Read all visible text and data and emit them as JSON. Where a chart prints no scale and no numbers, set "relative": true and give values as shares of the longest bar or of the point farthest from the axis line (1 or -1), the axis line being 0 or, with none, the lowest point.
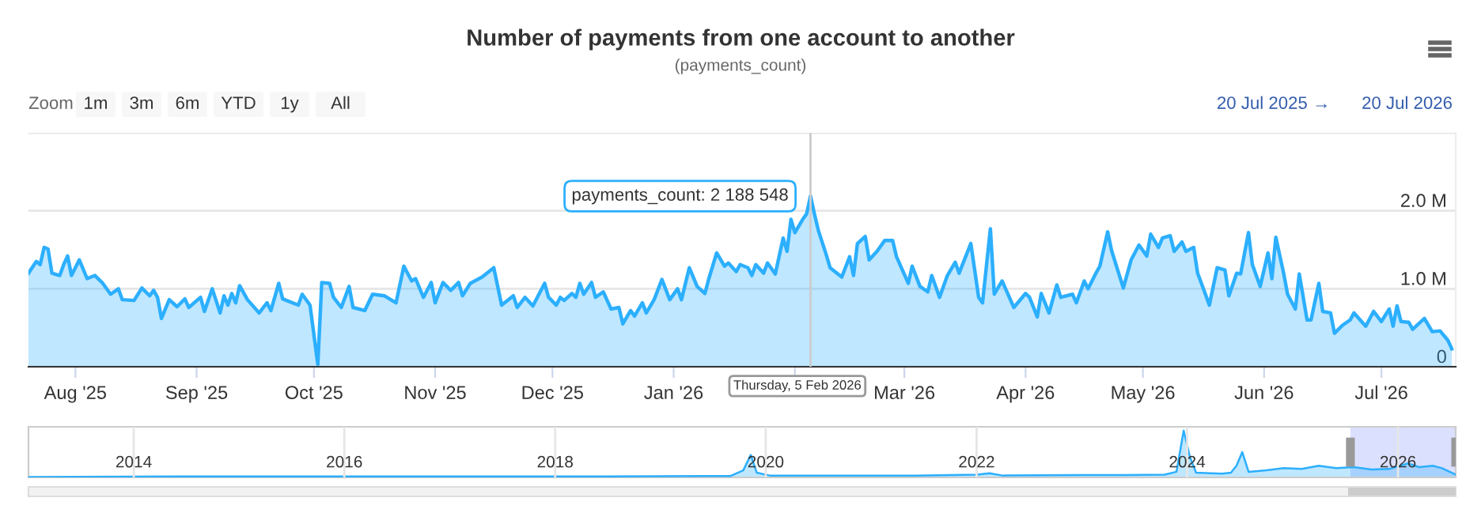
{
  "chart_data": [
    {
      "type": "area",
      "title": "Number of payments from one account to another",
      "subtitle": "(payments_count)",
      "color": "#2caffe",
      "x": [
        "2025-07-20",
        "2025-07-22",
        "2025-07-23",
        "2025-07-24",
        "2025-07-25",
        "2025-07-26",
        "2025-07-28",
        "2025-07-29",
        "2025-07-30",
        "2025-07-31",
        "2025-08-02",
        "2025-08-04",
        "2025-08-06",
        "2025-08-08",
        "2025-08-10",
        "2025-08-12",
        "2025-08-13",
        "2025-08-16",
        "2025-08-18",
        "2025-08-20",
        "2025-08-21",
        "2025-08-22",
        "2025-08-23",
        "2025-08-25",
        "2025-08-27",
        "2025-08-29",
        "2025-08-30",
        "2025-09-02",
        "2025-09-03",
        "2025-09-05",
        "2025-09-07",
        "2025-09-08",
        "2025-09-09",
        "2025-09-10",
        "2025-09-11",
        "2025-09-12",
        "2025-09-14",
        "2025-09-17",
        "2025-09-19",
        "2025-09-20",
        "2025-09-22",
        "2025-09-23",
        "2025-09-27",
        "2025-09-28",
        "2025-09-30",
        "2025-10-02",
        "2025-10-03",
        "2025-10-05",
        "2025-10-06",
        "2025-10-08",
        "2025-10-10",
        "2025-10-11",
        "2025-10-14",
        "2025-10-16",
        "2025-10-19",
        "2025-10-22",
        "2025-10-24",
        "2025-10-26",
        "2025-10-27",
        "2025-10-29",
        "2025-10-31",
        "2025-11-01",
        "2025-11-03",
        "2025-11-05",
        "2025-11-07",
        "2025-11-08",
        "2025-11-10",
        "2025-11-13",
        "2025-11-16",
        "2025-11-18",
        "2025-11-21",
        "2025-11-22",
        "2025-11-24",
        "2025-11-26",
        "2025-11-29",
        "2025-11-30",
        "2025-12-02",
        "2025-12-03",
        "2025-12-04",
        "2025-12-06",
        "2025-12-07",
        "2025-12-08",
        "2025-12-09",
        "2025-12-11",
        "2025-12-12",
        "2025-12-14",
        "2025-12-16",
        "2025-12-18",
        "2025-12-19",
        "2025-12-21",
        "2025-12-22",
        "2025-12-24",
        "2025-12-25",
        "2025-12-27",
        "2025-12-29",
        "2025-12-31",
        "2026-01-02",
        "2026-01-03",
        "2026-01-05",
        "2026-01-07",
        "2026-01-09",
        "2026-01-10",
        "2026-01-12",
        "2026-01-14",
        "2026-01-15",
        "2026-01-17",
        "2026-01-18",
        "2026-01-20",
        "2026-01-21",
        "2026-01-22",
        "2026-01-24",
        "2026-01-25",
        "2026-01-27",
        "2026-01-29",
        "2026-01-30",
        "2026-01-31",
        "2026-02-01",
        "2026-02-03",
        "2026-02-04",
        "2026-02-05",
        "2026-02-06",
        "2026-02-07",
        "2026-02-09",
        "2026-02-10",
        "2026-02-13",
        "2026-02-15",
        "2026-02-16",
        "2026-02-17",
        "2026-02-19",
        "2026-02-20",
        "2026-02-22",
        "2026-02-24",
        "2026-02-26",
        "2026-02-27",
        "2026-03-02",
        "2026-03-03",
        "2026-03-05",
        "2026-03-07",
        "2026-03-08",
        "2026-03-10",
        "2026-03-12",
        "2026-03-14",
        "2026-03-15",
        "2026-03-18",
        "2026-03-20",
        "2026-03-21",
        "2026-03-23",
        "2026-03-24",
        "2026-03-26",
        "2026-03-29",
        "2026-04-01",
        "2026-04-02",
        "2026-04-04",
        "2026-04-05",
        "2026-04-07",
        "2026-04-09",
        "2026-04-10",
        "2026-04-13",
        "2026-04-14",
        "2026-04-16",
        "2026-04-17",
        "2026-04-19",
        "2026-04-20",
        "2026-04-22",
        "2026-04-23",
        "2026-04-25",
        "2026-04-26",
        "2026-04-28",
        "2026-04-30",
        "2026-05-02",
        "2026-05-03",
        "2026-05-05",
        "2026-05-06",
        "2026-05-08",
        "2026-05-09",
        "2026-05-11",
        "2026-05-12",
        "2026-05-14",
        "2026-05-15",
        "2026-05-17",
        "2026-05-18",
        "2026-05-20",
        "2026-05-22",
        "2026-05-23",
        "2026-05-25",
        "2026-05-26",
        "2026-05-28",
        "2026-05-29",
        "2026-05-31",
        "2026-06-02",
        "2026-06-03",
        "2026-06-04",
        "2026-06-06",
        "2026-06-07",
        "2026-06-09",
        "2026-06-10",
        "2026-06-12",
        "2026-06-13",
        "2026-06-15",
        "2026-06-16",
        "2026-06-18",
        "2026-06-19",
        "2026-06-21",
        "2026-06-23",
        "2026-06-24",
        "2026-06-27",
        "2026-06-29",
        "2026-07-01",
        "2026-07-03",
        "2026-07-04",
        "2026-07-05",
        "2026-07-06",
        "2026-07-08",
        "2026-07-09",
        "2026-07-12",
        "2026-07-14",
        "2026-07-16",
        "2026-07-18",
        "2026-07-19"
      ],
      "values": [
        1200000,
        1350000,
        1310000,
        1530000,
        1510000,
        1200000,
        1170000,
        1310000,
        1420000,
        1170000,
        1370000,
        1130000,
        1170000,
        1070000,
        930000,
        1000000,
        860000,
        850000,
        1010000,
        910000,
        980000,
        890000,
        620000,
        860000,
        770000,
        870000,
        760000,
        890000,
        710000,
        1000000,
        690000,
        910000,
        790000,
        940000,
        820000,
        1040000,
        860000,
        690000,
        820000,
        720000,
        1070000,
        870000,
        790000,
        930000,
        790000,
        30000,
        1080000,
        1070000,
        890000,
        760000,
        1030000,
        760000,
        720000,
        930000,
        910000,
        820000,
        1290000,
        1100000,
        1130000,
        890000,
        1080000,
        820000,
        1080000,
        980000,
        1080000,
        910000,
        1070000,
        1150000,
        1270000,
        790000,
        910000,
        760000,
        890000,
        780000,
        1070000,
        890000,
        790000,
        890000,
        850000,
        940000,
        890000,
        1070000,
        930000,
        1080000,
        890000,
        960000,
        740000,
        760000,
        550000,
        720000,
        650000,
        820000,
        690000,
        860000,
        1120000,
        860000,
        1000000,
        860000,
        1270000,
        1030000,
        940000,
        1130000,
        1460000,
        1290000,
        1330000,
        1220000,
        1310000,
        1270000,
        1170000,
        1310000,
        1200000,
        1330000,
        1190000,
        1650000,
        1480000,
        1890000,
        1720000,
        1890000,
        1960000,
        2188548,
        1960000,
        1750000,
        1440000,
        1270000,
        1150000,
        1410000,
        1170000,
        1580000,
        1670000,
        1370000,
        1480000,
        1620000,
        1620000,
        1410000,
        1070000,
        1290000,
        1030000,
        960000,
        1170000,
        890000,
        1170000,
        1340000,
        1200000,
        1580000,
        890000,
        820000,
        1770000,
        930000,
        1100000,
        760000,
        940000,
        890000,
        640000,
        940000,
        690000,
        1050000,
        890000,
        930000,
        820000,
        1100000,
        1000000,
        1200000,
        1290000,
        1730000,
        1490000,
        1170000,
        1010000,
        1370000,
        1560000,
        1420000,
        1700000,
        1530000,
        1650000,
        1680000,
        1480000,
        1600000,
        1480000,
        1530000,
        1200000,
        930000,
        790000,
        1270000,
        1240000,
        910000,
        1200000,
        1190000,
        1720000,
        1310000,
        1030000,
        1460000,
        1130000,
        1660000,
        1200000,
        930000,
        740000,
        1190000,
        600000,
        600000,
        1070000,
        710000,
        690000,
        430000,
        530000,
        600000,
        690000,
        520000,
        710000,
        580000,
        740000,
        520000,
        780000,
        580000,
        570000,
        480000,
        620000,
        450000,
        460000,
        340000,
        230000
      ],
      "xlim": [
        "2025-07-20",
        "2026-07-20"
      ],
      "xticks": [
        {
          "value": "2025-08-01",
          "label": "Aug '25"
        },
        {
          "value": "2025-09-01",
          "label": "Sep '25"
        },
        {
          "value": "2025-10-01",
          "label": "Oct '25"
        },
        {
          "value": "2025-11-01",
          "label": "Nov '25"
        },
        {
          "value": "2025-12-01",
          "label": "Dec '25"
        },
        {
          "value": "2026-01-01",
          "label": "Jan '26"
        },
        {
          "value": "2026-02-01",
          "label": null
        },
        {
          "value": "2026-03-01",
          "label": "Mar '26"
        },
        {
          "value": "2026-04-01",
          "label": "Apr '26"
        },
        {
          "value": "2026-05-01",
          "label": "May '26"
        },
        {
          "value": "2026-06-01",
          "label": "Jun '26"
        },
        {
          "value": "2026-07-01",
          "label": "Jul '26"
        }
      ],
      "ylim": [
        0,
        3000000
      ],
      "yticks": [
        0,
        {
          "value": 1000000,
          "label": "1.0 M"
        },
        {
          "value": 2000000,
          "label": "2.0 M"
        },
        {
          "value": 3000000,
          "label": null
        }
      ],
      "grid": "y",
      "ref_lines": [
        {
          "axis": "x",
          "value": "2026-02-05",
          "color": "#cccccc"
        }
      ],
      "annotations": [
        "Zoom",
        "1m",
        "3m",
        "6m",
        "YTD",
        "1y",
        "All",
        "20 Jul 2025",
        "→",
        "20 Jul 2026",
        "Thursday, 5 Feb 2026",
        {
          "text": "payments_count: 2 188 548",
          "x": "2026-02-05",
          "y": 2188548
        }
      ]
    },
    {
      "type": "area",
      "relative": true,
      "color": "#2caffe",
      "x": [
        "2013-01-01",
        "2014-06-01",
        "2016-01-01",
        "2017-06-01",
        "2018-06-01",
        "2019-06-01",
        "2019-09-01",
        "2019-10-15",
        "2019-11-10",
        "2019-12-01",
        "2020-01-15",
        "2020-06-01",
        "2021-06-01",
        "2022-01-01",
        "2022-02-15",
        "2022-04-01",
        "2023-01-01",
        "2023-06-01",
        "2023-10-15",
        "2023-11-25",
        "2023-12-20",
        "2024-01-10",
        "2024-02-01",
        "2024-05-01",
        "2024-06-01",
        "2024-06-20",
        "2024-07-10",
        "2024-08-01",
        "2024-10-01",
        "2024-12-01",
        "2025-02-01",
        "2025-04-01",
        "2025-06-01",
        "2025-08-01",
        "2025-10-01",
        "2025-12-01",
        "2026-02-05",
        "2026-03-15",
        "2026-05-01",
        "2026-06-01",
        "2026-07-20"
      ],
      "values": [
        0.01,
        0.02,
        0.02,
        0.02,
        0.02,
        0.03,
        0.03,
        0.15,
        0.48,
        0.1,
        0.04,
        0.04,
        0.04,
        0.06,
        0.09,
        0.04,
        0.05,
        0.05,
        0.06,
        0.12,
        1.0,
        0.45,
        0.1,
        0.08,
        0.1,
        0.25,
        0.54,
        0.12,
        0.15,
        0.2,
        0.18,
        0.25,
        0.2,
        0.22,
        0.17,
        0.18,
        0.3,
        0.22,
        0.25,
        0.2,
        0.06
      ],
      "xlim": [
        "2013-01-01",
        "2026-07-20"
      ],
      "xticks": [
        {
          "value": "2014-01-01",
          "label": "2014"
        },
        {
          "value": "2016-01-01",
          "label": "2016"
        },
        {
          "value": "2018-01-01",
          "label": "2018"
        },
        {
          "value": "2020-01-01",
          "label": "2020"
        },
        {
          "value": "2022-01-01",
          "label": "2022"
        },
        {
          "value": "2024-01-01",
          "label": "2024"
        },
        {
          "value": "2026-01-01",
          "label": "2026"
        }
      ],
      "grid": "x",
      "tick_labels": "x",
      "bands": [
        {
          "axis": "x",
          "from": "2025-07-20",
          "to": "2026-07-20",
          "color": "#ccd3ff"
        }
      ]
    }
  ]
}
